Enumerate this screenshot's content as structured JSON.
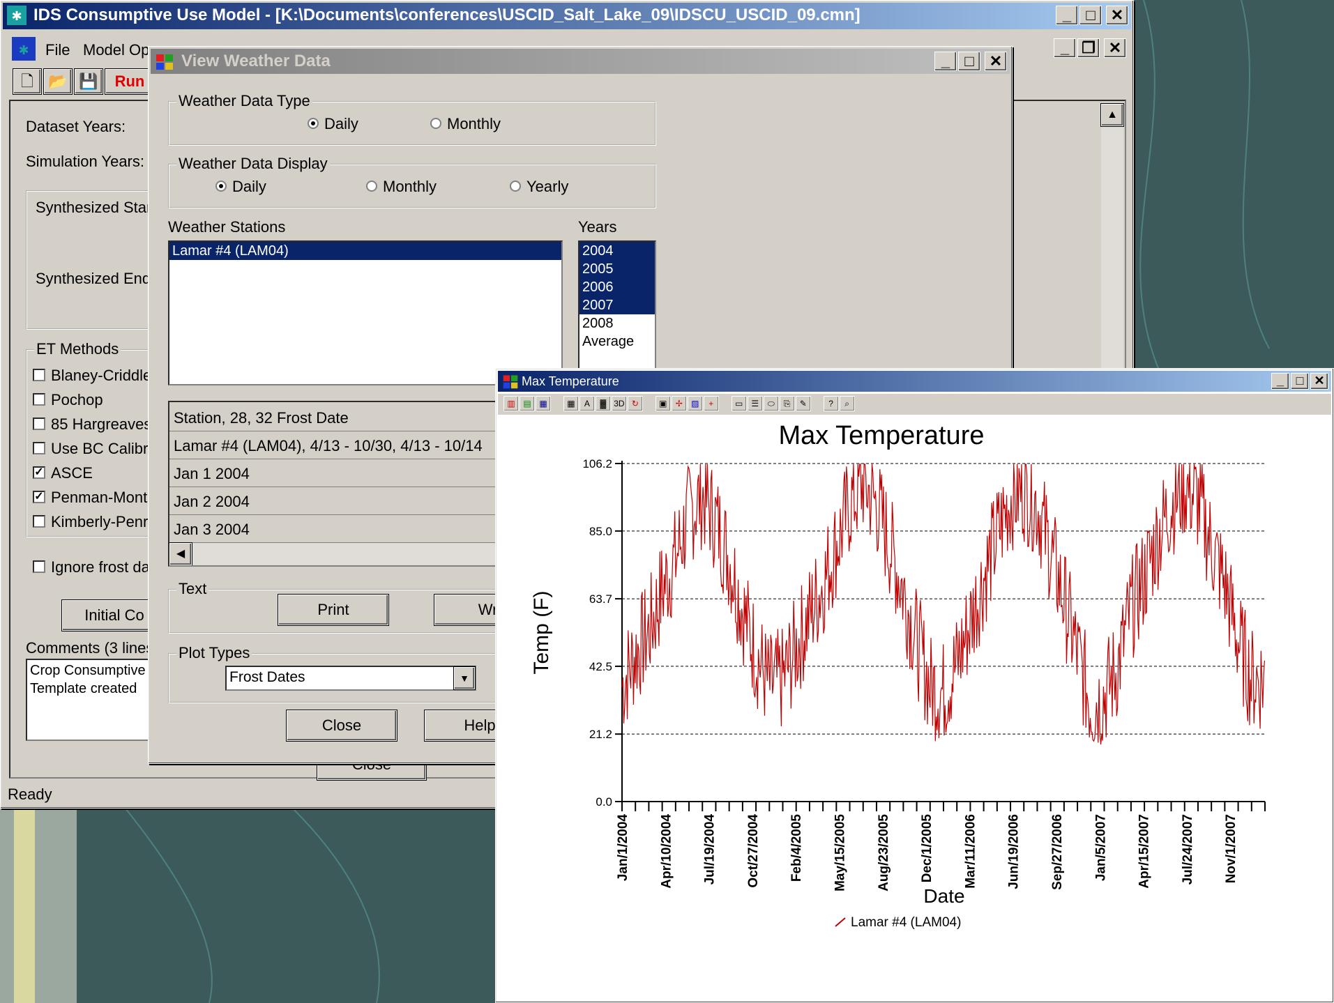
{
  "colors": {
    "desktop": "#3c5a5a",
    "title_active": "#0a246a",
    "series": "#c00000"
  },
  "main": {
    "title": "IDS Consumptive Use Model - [K:\\Documents\\conferences\\USCID_Salt_Lake_09\\IDSCU_USCID_09.cmn]",
    "menu": [
      "File",
      "Model Op"
    ],
    "toolbar_run": "Run",
    "labels": {
      "dataset_years": "Dataset Years:",
      "simulation_years": "Simulation Years:",
      "synth_start": "Synthesized Star",
      "synth_end": "Synthesized End",
      "et_methods": "ET Methods",
      "ignore_frost": "Ignore frost da",
      "initial_button": "Initial Co",
      "comments": "Comments (3 lines",
      "close_button": "Close"
    },
    "et_methods": [
      {
        "label": "Blaney-Criddle",
        "checked": false
      },
      {
        "label": "Pochop",
        "checked": false
      },
      {
        "label": "85 Hargreaves",
        "checked": false
      },
      {
        "label": "Use BC Calibr",
        "checked": false
      },
      {
        "label": "ASCE",
        "checked": true
      },
      {
        "label": "Penman-Monte",
        "checked": true
      },
      {
        "label": "Kimberly-Penr",
        "checked": false
      }
    ],
    "comments_lines": [
      "Crop Consumptive",
      "Template created"
    ],
    "status": "Ready"
  },
  "weather_dialog": {
    "title": "View Weather Data",
    "type_group": "Weather Data Type",
    "type_options": [
      "Daily",
      "Monthly"
    ],
    "display_group": "Weather Data Display",
    "display_options": [
      "Daily",
      "Monthly",
      "Yearly"
    ],
    "stations_label": "Weather Stations",
    "stations": [
      "Lamar #4 (LAM04)"
    ],
    "years_label": "Years",
    "years": [
      {
        "label": "2004",
        "selected": true
      },
      {
        "label": "2005",
        "selected": true
      },
      {
        "label": "2006",
        "selected": true
      },
      {
        "label": "2007",
        "selected": true
      },
      {
        "label": "2008",
        "selected": false
      },
      {
        "label": "Average",
        "selected": false
      }
    ],
    "grid_rows": [
      "Station, 28, 32 Frost Date",
      "Lamar #4 (LAM04), 4/13 - 10/30, 4/13 - 10/14",
      "Jan 1 2004",
      "Jan 2 2004",
      "Jan 3 2004"
    ],
    "text_group": "Text",
    "print_button": "Print",
    "write_button": "Wri",
    "plot_group": "Plot Types",
    "plot_selected": "Frost Dates",
    "close_button": "Close",
    "help_button": "Help"
  },
  "chart_window": {
    "title": "Max Temperature"
  },
  "chart_data": {
    "type": "line",
    "title": "Max Temperature",
    "xlabel": "Date",
    "ylabel": "Temp (F)",
    "yticks": [
      "0.0",
      "21.2",
      "42.5",
      "63.7",
      "85.0",
      "106.2"
    ],
    "ylim": [
      0,
      106.2
    ],
    "xticks": [
      "Jan/1/2004",
      "Apr/10/2004",
      "Jul/19/2004",
      "Oct/27/2004",
      "Feb/4/2005",
      "May/15/2005",
      "Aug/23/2005",
      "Dec/1/2005",
      "Mar/11/2006",
      "Jun/19/2006",
      "Sep/27/2006",
      "Jan/5/2007",
      "Apr/15/2007",
      "Jul/24/2007",
      "Nov/1/2007"
    ],
    "grid": "horizontal dashed",
    "legend": "bottom",
    "series": [
      {
        "name": "Lamar #4 (LAM04)",
        "x_start": "Jan/1/2004",
        "x_end": "Dec/31/2007",
        "sampling": "monthly approx. of daily series",
        "values": [
          38,
          48,
          55,
          68,
          78,
          92,
          98,
          90,
          78,
          62,
          48,
          38,
          40,
          50,
          60,
          70,
          82,
          95,
          102,
          95,
          82,
          68,
          52,
          38,
          36,
          45,
          58,
          72,
          85,
          97,
          100,
          95,
          80,
          65,
          48,
          32,
          35,
          44,
          62,
          72,
          85,
          95,
          101,
          96,
          82,
          70,
          52,
          40
        ]
      }
    ]
  }
}
